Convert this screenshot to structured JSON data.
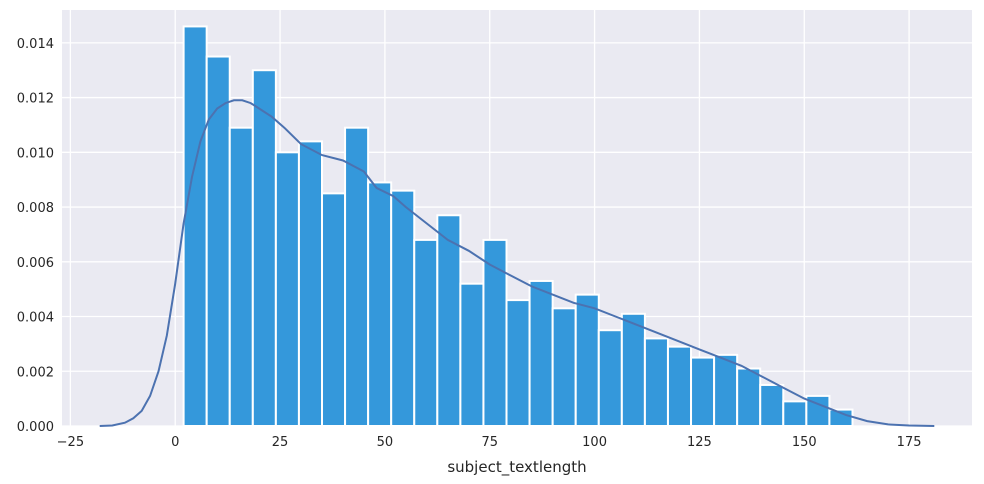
{
  "chart_data": {
    "type": "bar",
    "title": "",
    "xlabel": "subject_textlength",
    "ylabel": "",
    "xlim": [
      -27,
      190
    ],
    "ylim": [
      0,
      0.0152
    ],
    "grid": true,
    "background_color": "#EAEAF2",
    "bar_color": "#3498DB",
    "kde_color": "#4C72B0",
    "x_ticks": [
      -25,
      0,
      25,
      50,
      75,
      100,
      125,
      150,
      175
    ],
    "x_tick_labels": [
      "−25",
      "0",
      "25",
      "50",
      "75",
      "100",
      "125",
      "150",
      "175"
    ],
    "y_ticks": [
      0,
      0.002,
      0.004,
      0.006,
      0.008,
      0.01,
      0.012,
      0.014
    ],
    "y_tick_labels": [
      "0.000",
      "0.002",
      "0.004",
      "0.006",
      "0.008",
      "0.010",
      "0.012",
      "0.014"
    ],
    "bins": {
      "edges": [
        2,
        7.5,
        13,
        18.5,
        24,
        29.5,
        35,
        40.5,
        46,
        51.5,
        57,
        62.5,
        68,
        73.5,
        79,
        84.5,
        90,
        95.5,
        101,
        106.5,
        112,
        117.5,
        123,
        128.5,
        134,
        139.5,
        145,
        150.5,
        156,
        161.5
      ],
      "densities": [
        0.0146,
        0.0135,
        0.0109,
        0.013,
        0.01,
        0.0104,
        0.0085,
        0.0109,
        0.0089,
        0.0086,
        0.0068,
        0.0077,
        0.0052,
        0.0068,
        0.0046,
        0.0053,
        0.0043,
        0.0048,
        0.0035,
        0.0041,
        0.0032,
        0.0029,
        0.0025,
        0.0026,
        0.0021,
        0.0015,
        0.0009,
        0.0011,
        0.0006
      ]
    },
    "kde": {
      "x": [
        -18,
        -15,
        -12,
        -10,
        -8,
        -6,
        -4,
        -2,
        0,
        2,
        4,
        6,
        8,
        10,
        12,
        14,
        16,
        18,
        20,
        23,
        26,
        30,
        35,
        40,
        45,
        48,
        52,
        55,
        60,
        65,
        70,
        75,
        80,
        85,
        90,
        95,
        100,
        105,
        110,
        115,
        120,
        125,
        130,
        135,
        140,
        145,
        150,
        155,
        160,
        165,
        170,
        175,
        181
      ],
      "y": [
        0.0,
        2e-05,
        0.00012,
        0.00028,
        0.00055,
        0.0011,
        0.002,
        0.0033,
        0.0052,
        0.0074,
        0.0091,
        0.0104,
        0.0112,
        0.0116,
        0.0118,
        0.0119,
        0.0119,
        0.0118,
        0.0116,
        0.0113,
        0.0109,
        0.0103,
        0.0099,
        0.0097,
        0.0093,
        0.0087,
        0.0084,
        0.008,
        0.0074,
        0.0068,
        0.0064,
        0.0059,
        0.0055,
        0.0051,
        0.0048,
        0.0045,
        0.0043,
        0.004,
        0.0037,
        0.0034,
        0.0031,
        0.0028,
        0.0025,
        0.0022,
        0.0018,
        0.0014,
        0.001,
        0.0007,
        0.0004,
        0.00018,
        6e-05,
        2e-05,
        0.0
      ]
    }
  }
}
